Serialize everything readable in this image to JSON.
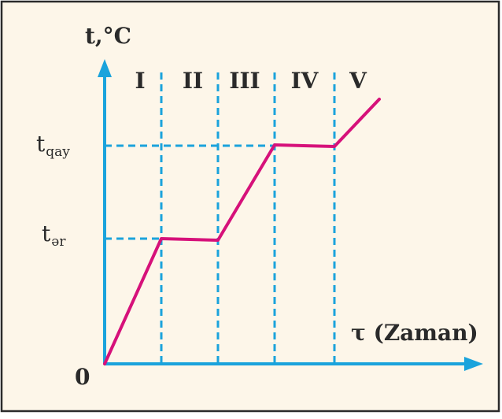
{
  "colors": {
    "background": "#fdf6e9",
    "frame": "#2b2b2b",
    "axis": "#1aa3dc",
    "guide": "#1aa3dc",
    "curve": "#d6117a",
    "text": "#2a2a2a"
  },
  "labels": {
    "y_axis_title": "t,°C",
    "x_axis_title": "τ (Zaman)",
    "origin": "0",
    "t_boil_main": "t",
    "t_boil_sub": "qay",
    "t_melt_main": "t",
    "t_melt_sub": "ər"
  },
  "stages": [
    "I",
    "II",
    "III",
    "IV",
    "V"
  ]
}
